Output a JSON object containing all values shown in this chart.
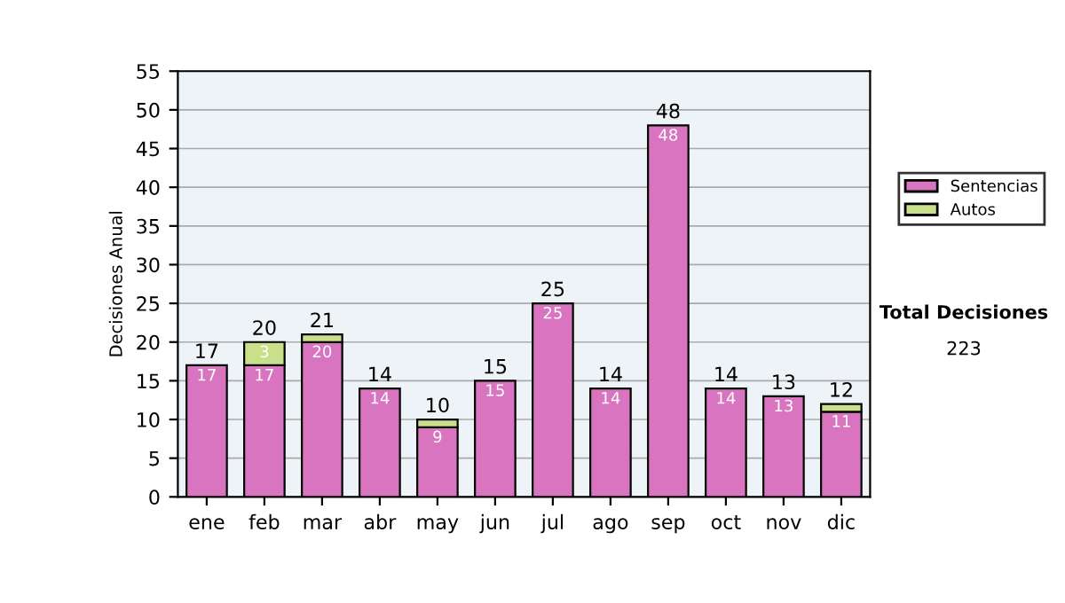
{
  "chart_data": {
    "type": "bar",
    "stacked": true,
    "ylabel": "Decisiones Anual",
    "categories": [
      "ene",
      "feb",
      "mar",
      "abr",
      "may",
      "jun",
      "jul",
      "ago",
      "sep",
      "oct",
      "nov",
      "dic"
    ],
    "series": [
      {
        "name": "Sentencias",
        "color": "#d975c0",
        "values": [
          17,
          17,
          20,
          14,
          9,
          15,
          25,
          14,
          48,
          14,
          13,
          11
        ],
        "value_labels": [
          "17",
          "17",
          "20",
          "14",
          "9",
          "15",
          "25",
          "14",
          "48",
          "14",
          "13",
          "11"
        ]
      },
      {
        "name": "Autos",
        "color": "#c8e08a",
        "values": [
          null,
          3,
          1,
          null,
          1,
          null,
          null,
          null,
          null,
          null,
          null,
          1
        ],
        "value_labels": [
          null,
          "3",
          null,
          null,
          null,
          null,
          null,
          null,
          null,
          null,
          null,
          null
        ]
      }
    ],
    "totals": [
      "17",
      "20",
      "21",
      "14",
      "10",
      "15",
      "25",
      "14",
      "48",
      "14",
      "13",
      "12"
    ],
    "ylim": [
      0,
      55
    ],
    "yticks": [
      0,
      5,
      10,
      15,
      20,
      25,
      30,
      35,
      40,
      45,
      50,
      55
    ],
    "grid": "y",
    "legend": "right",
    "annotations": [
      "Total Decisiones",
      "223"
    ]
  }
}
